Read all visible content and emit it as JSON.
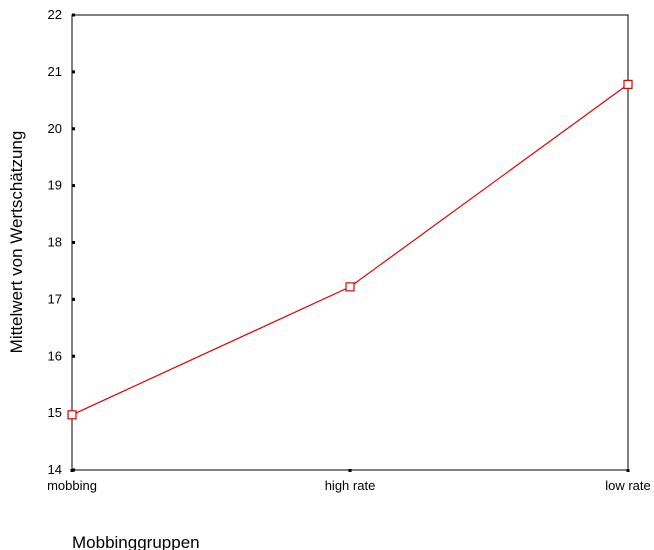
{
  "chart_data": {
    "type": "line",
    "categories": [
      "mobbing",
      "high rate",
      "low rate"
    ],
    "values": [
      14.97,
      17.22,
      20.78
    ],
    "xlabel": "Mobbinggruppen",
    "ylabel": "Mittelwert von Wertschätzung",
    "ylim": [
      14,
      22
    ],
    "yticks": [
      "14",
      "15",
      "16",
      "17",
      "18",
      "19",
      "20",
      "21",
      "22"
    ],
    "grid": false,
    "marker": "open-square",
    "line_color": "#e00000"
  }
}
